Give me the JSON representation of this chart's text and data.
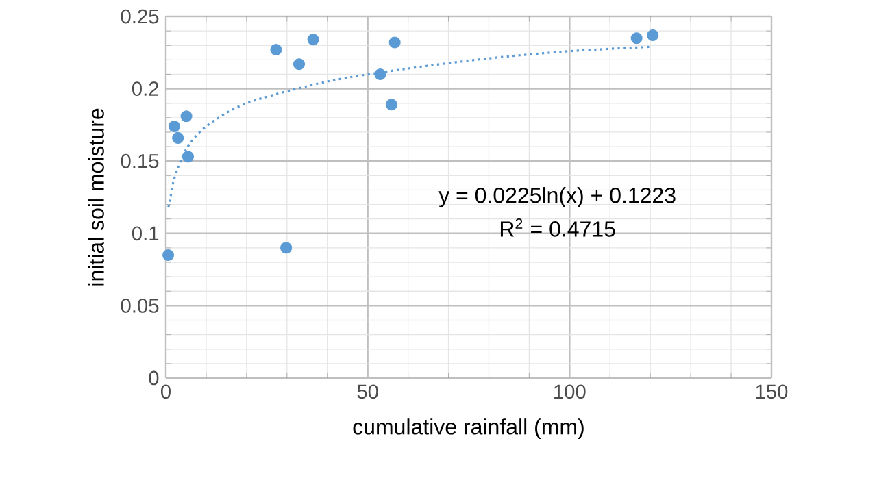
{
  "chart_data": {
    "type": "scatter",
    "xlabel": "cumulative rainfall (mm)",
    "ylabel": "initial soil moisture",
    "xlim": [
      0,
      150
    ],
    "xticks": [
      0,
      50,
      100,
      150
    ],
    "ylim": [
      0,
      0.25
    ],
    "yticks": [
      0,
      0.05,
      0.1,
      0.15,
      0.2,
      0.25
    ],
    "grid": true,
    "marker": "circle",
    "series": [
      {
        "color": "#5b9bd5",
        "x": [
          0.6,
          2.1,
          3.0,
          5.1,
          5.5,
          27.3,
          29.8,
          33,
          36.5,
          53.1,
          55.9,
          56.7,
          116.6,
          120.6
        ],
        "values": [
          0.085,
          0.174,
          0.166,
          0.181,
          0.153,
          0.227,
          0.09,
          0.217,
          0.234,
          0.21,
          0.189,
          0.232,
          0.235,
          0.237
        ]
      },
      {
        "type": "line",
        "color": "#5b9bd5",
        "line_style": "dotted",
        "marker": "none",
        "x": [
          0.6,
          1,
          2,
          5,
          10,
          20,
          40,
          60,
          80,
          100,
          120
        ],
        "values": [
          0.118,
          0.122,
          0.137,
          0.158,
          0.174,
          0.19,
          0.205,
          0.214,
          0.221,
          0.226,
          0.229
        ]
      }
    ],
    "annotations": [
      "y = 0.0225ln(x) + 0.1223",
      "R$^{2}$ = 0.4715"
    ]
  }
}
